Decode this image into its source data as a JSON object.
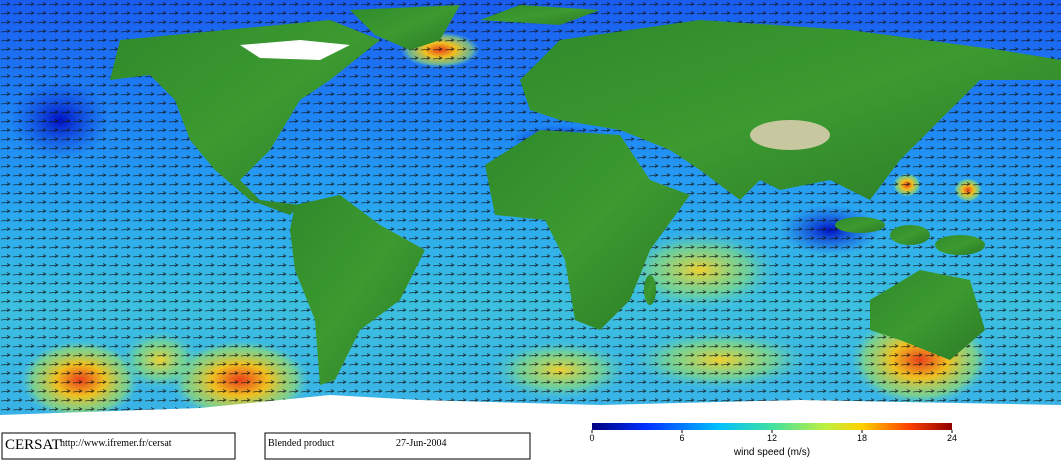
{
  "footer": {
    "logo": "CERSAT",
    "url": "http://www.ifremer.fr/cersat",
    "product": "Blended product",
    "date": "27-Jun-2004"
  },
  "colorbar": {
    "title": "wind speed (m/s)",
    "range": [
      0,
      24
    ],
    "ticks": [
      0,
      6,
      12,
      18,
      24
    ]
  }
}
